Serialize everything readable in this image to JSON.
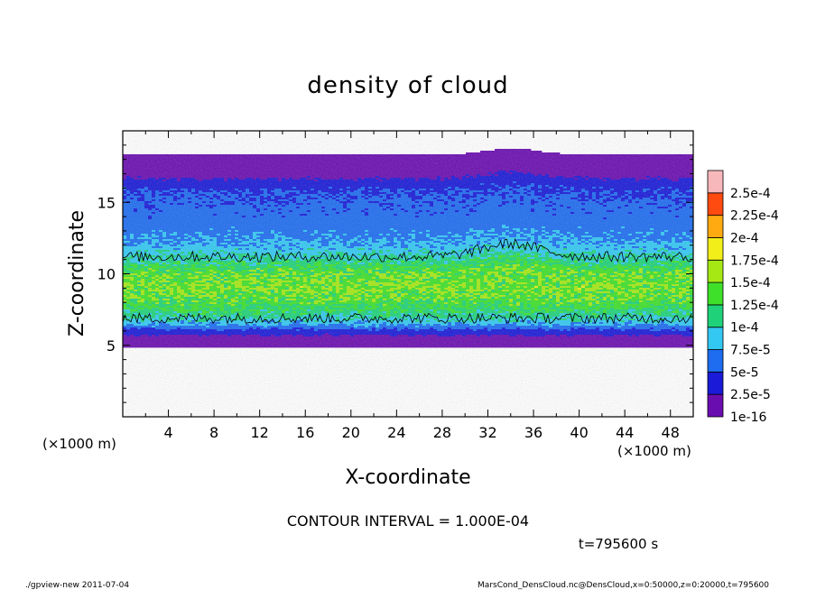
{
  "chart_data": {
    "type": "heatmap",
    "title": "density of cloud",
    "xlabel": "X-coordinate",
    "ylabel": "Z-coordinate",
    "x_unit": "(×1000 m)",
    "y_unit": "(×1000 m)",
    "xlim": [
      0,
      50
    ],
    "ylim": [
      0,
      20
    ],
    "x_ticks": [
      4,
      8,
      12,
      16,
      20,
      24,
      28,
      32,
      36,
      40,
      44,
      48
    ],
    "y_ticks": [
      5,
      10,
      15
    ],
    "grid": false,
    "colorbar": {
      "levels": [
        {
          "label": "1e-16",
          "value": 1e-16,
          "color": "#6a0db0"
        },
        {
          "label": "2.5e-5",
          "value": 2.5e-05,
          "color": "#1a1ad8"
        },
        {
          "label": "5e-5",
          "value": 5e-05,
          "color": "#1e6cf0"
        },
        {
          "label": "7.5e-5",
          "value": 7.5e-05,
          "color": "#33c8f2"
        },
        {
          "label": "1e-4",
          "value": 0.0001,
          "color": "#1fd27a"
        },
        {
          "label": "1.25e-4",
          "value": 0.000125,
          "color": "#3ee02a"
        },
        {
          "label": "1.5e-4",
          "value": 0.00015,
          "color": "#a6e814"
        },
        {
          "label": "1.75e-4",
          "value": 0.000175,
          "color": "#f2ee1a"
        },
        {
          "label": "2e-4",
          "value": 0.0002,
          "color": "#ffaa10"
        },
        {
          "label": "2.25e-4",
          "value": 0.000225,
          "color": "#ff4a10"
        },
        {
          "label": "2.5e-4",
          "value": 0.00025,
          "color": "#f27a7a"
        }
      ],
      "top_color": "#f7b8bc"
    },
    "field_profile": {
      "z": [
        4.8,
        5.0,
        5.5,
        6.0,
        6.5,
        7.0,
        8.0,
        9.0,
        10.0,
        11.0,
        12.0,
        13.0,
        14.0,
        15.0,
        16.0,
        16.5,
        17.0,
        17.5,
        18.0,
        18.3
      ],
      "density": [
        1e-16,
        2e-06,
        1.5e-05,
        4e-05,
        8e-05,
        0.000105,
        0.000135,
        0.00015,
        0.000142,
        0.000105,
        8e-05,
        6.5e-05,
        6e-05,
        5.5e-05,
        4.5e-05,
        3e-05,
        1.5e-05,
        5e-06,
        1e-06,
        1e-16
      ]
    },
    "contour_interval": "CONTOUR INTERVAL = 1.000E-04",
    "contour_levels": [
      0.0001
    ],
    "time_label": "t=795600 s"
  },
  "footer": {
    "left": "./gpview-new   2011-07-04",
    "right": "MarsCond_DensCloud.nc@DensCloud,x=0:50000,z=0:20000,t=795600"
  }
}
